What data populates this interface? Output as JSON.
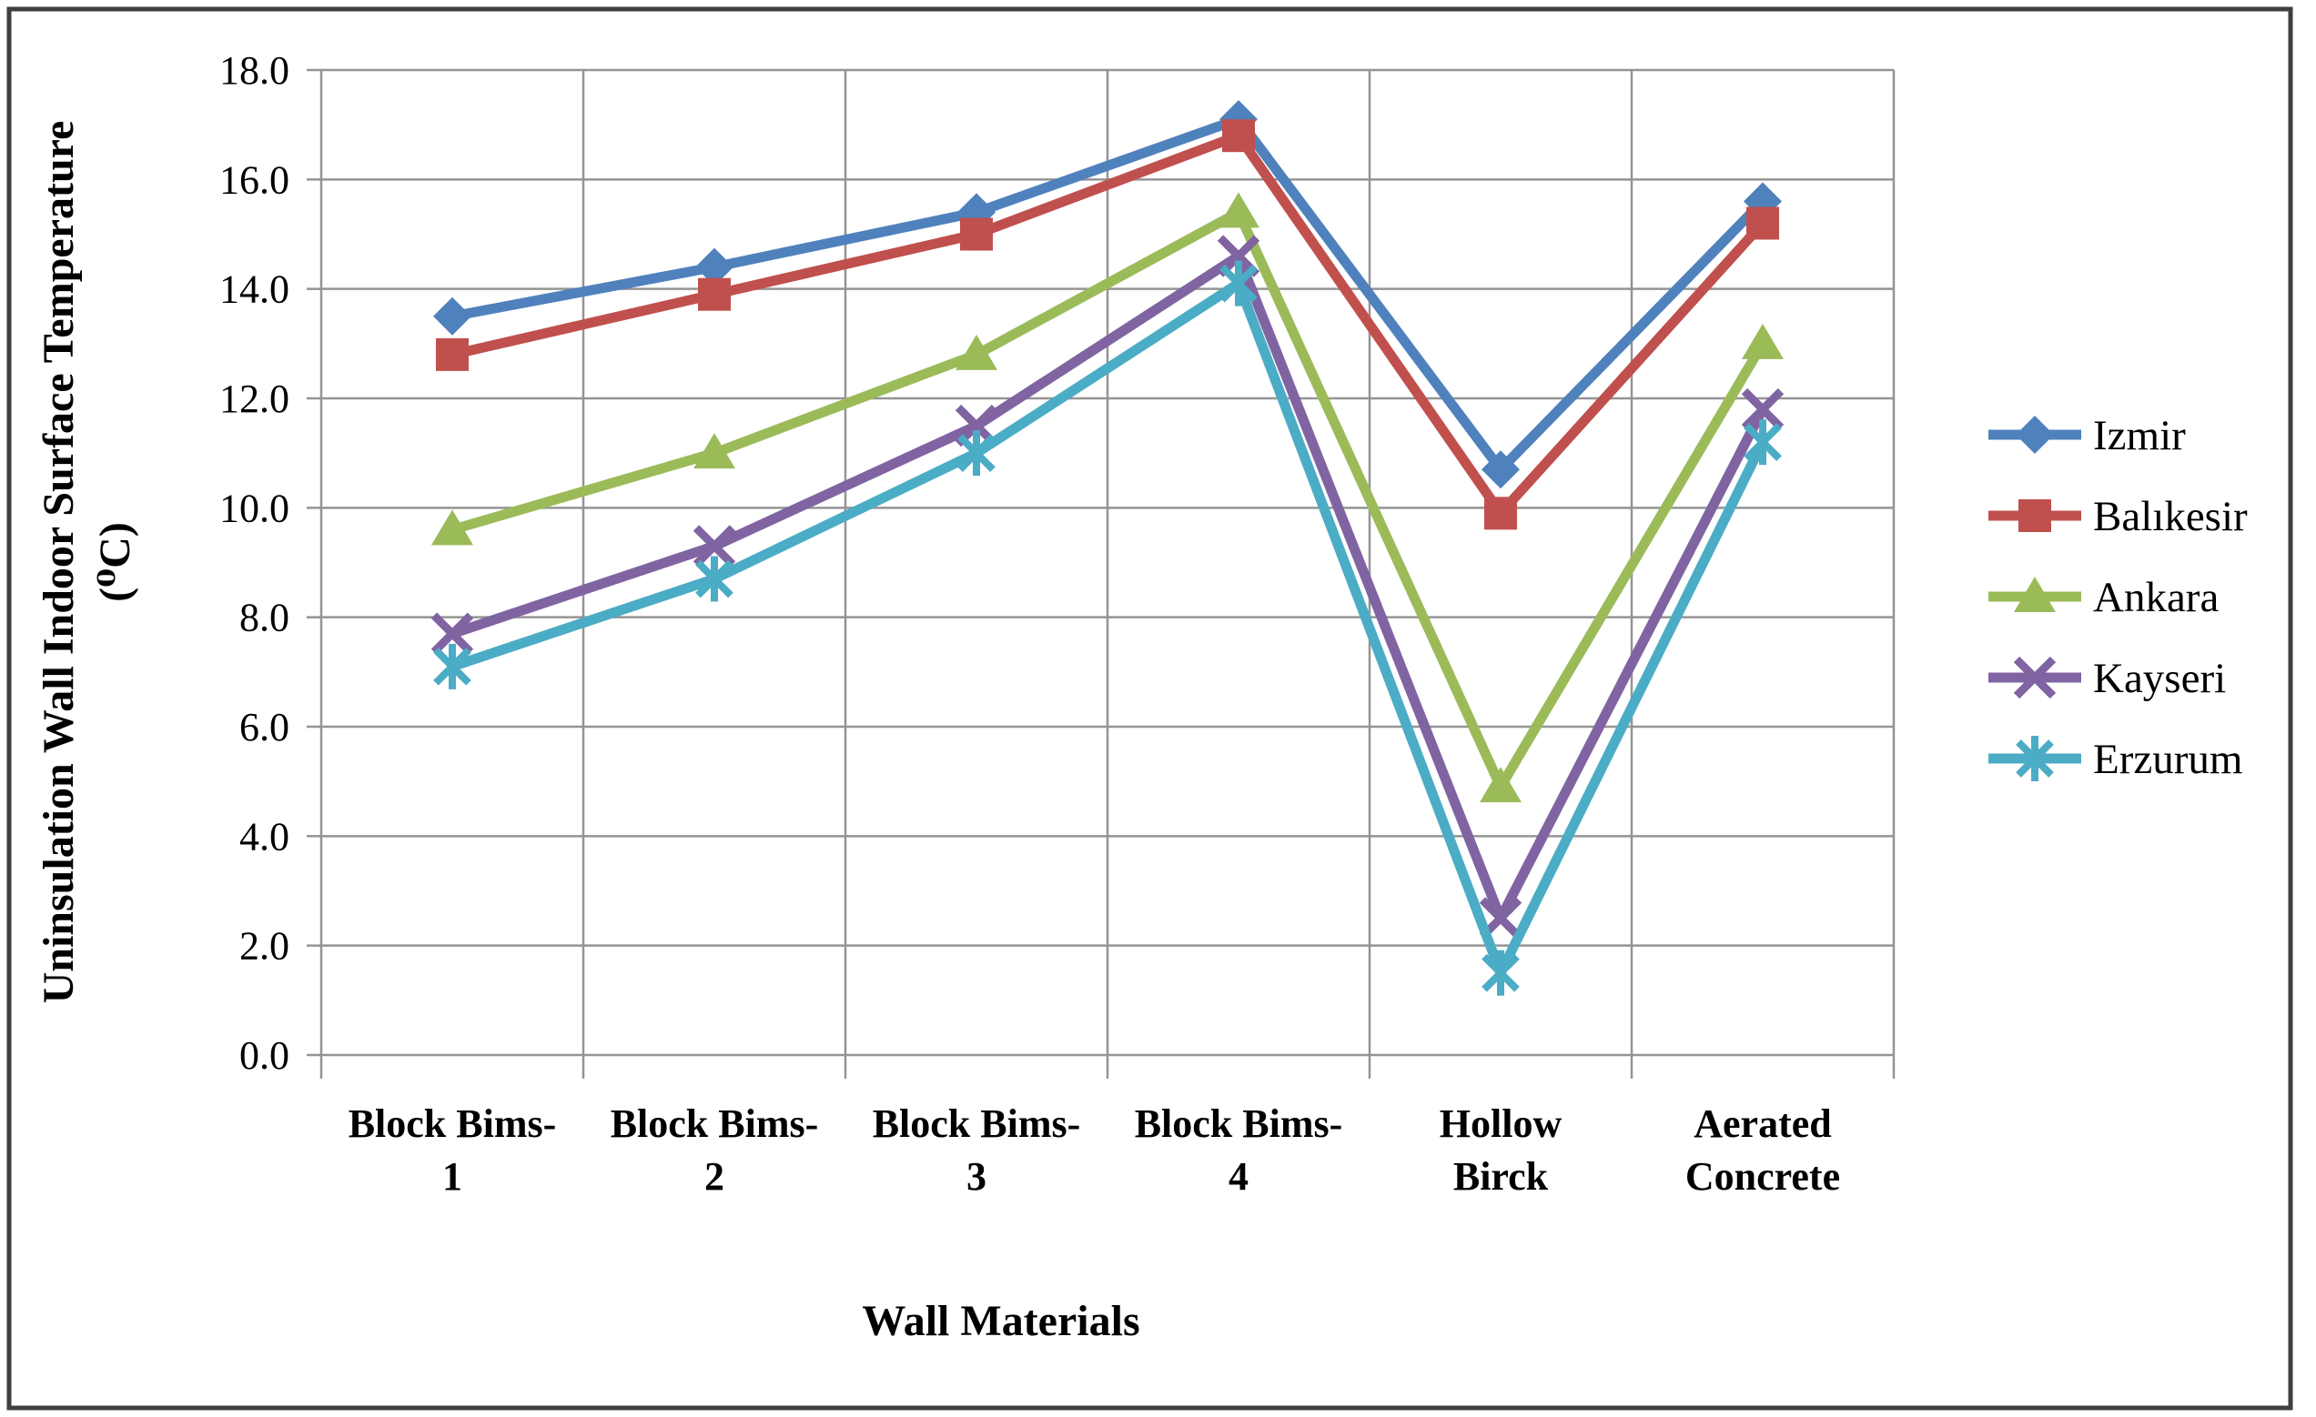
{
  "figure": {
    "background": "#ffffff",
    "border_color": "#3f3f3f"
  },
  "chart_data": {
    "type": "line",
    "title": "",
    "xlabel": "Wall Materials",
    "ylabel": "Uninsulation Wall Indoor Surface Temperature (⁰C)",
    "ylabel_lines": [
      "Uninsulation Wall Indoor Surface Temperature",
      "(⁰C)"
    ],
    "categories": [
      "Block Bims-1",
      "Block Bims-2",
      "Block Bims-3",
      "Block Bims-4",
      "Hollow Birck",
      "Aerated Concrete"
    ],
    "category_labels": [
      [
        "Block Bims-",
        "1"
      ],
      [
        "Block Bims-",
        "2"
      ],
      [
        "Block Bims-",
        "3"
      ],
      [
        "Block Bims-",
        "4"
      ],
      [
        "Hollow",
        "Birck"
      ],
      [
        "Aerated",
        "Concrete"
      ]
    ],
    "series": [
      {
        "name": "Izmir",
        "color": "#4F81BD",
        "marker": "diamond",
        "values": [
          13.5,
          14.4,
          15.4,
          17.1,
          10.7,
          15.6
        ]
      },
      {
        "name": "Balıkesir",
        "color": "#C0504D",
        "marker": "square",
        "values": [
          12.8,
          13.9,
          15.0,
          16.8,
          9.9,
          15.2
        ]
      },
      {
        "name": "Ankara",
        "color": "#9BBB59",
        "marker": "triangle",
        "values": [
          9.6,
          11.0,
          12.8,
          15.4,
          4.9,
          13.0
        ]
      },
      {
        "name": "Kayseri",
        "color": "#8064A2",
        "marker": "x",
        "values": [
          7.7,
          9.3,
          11.5,
          14.6,
          2.5,
          11.8
        ]
      },
      {
        "name": "Erzurum",
        "color": "#4BACC6",
        "marker": "star",
        "values": [
          7.1,
          8.7,
          11.0,
          14.1,
          1.5,
          11.2
        ]
      }
    ],
    "y_axis": {
      "min": 0,
      "max": 18,
      "step": 2,
      "tick_decimals": 1
    },
    "grid": true,
    "grid_color": "#949494",
    "legend_position": "right"
  }
}
